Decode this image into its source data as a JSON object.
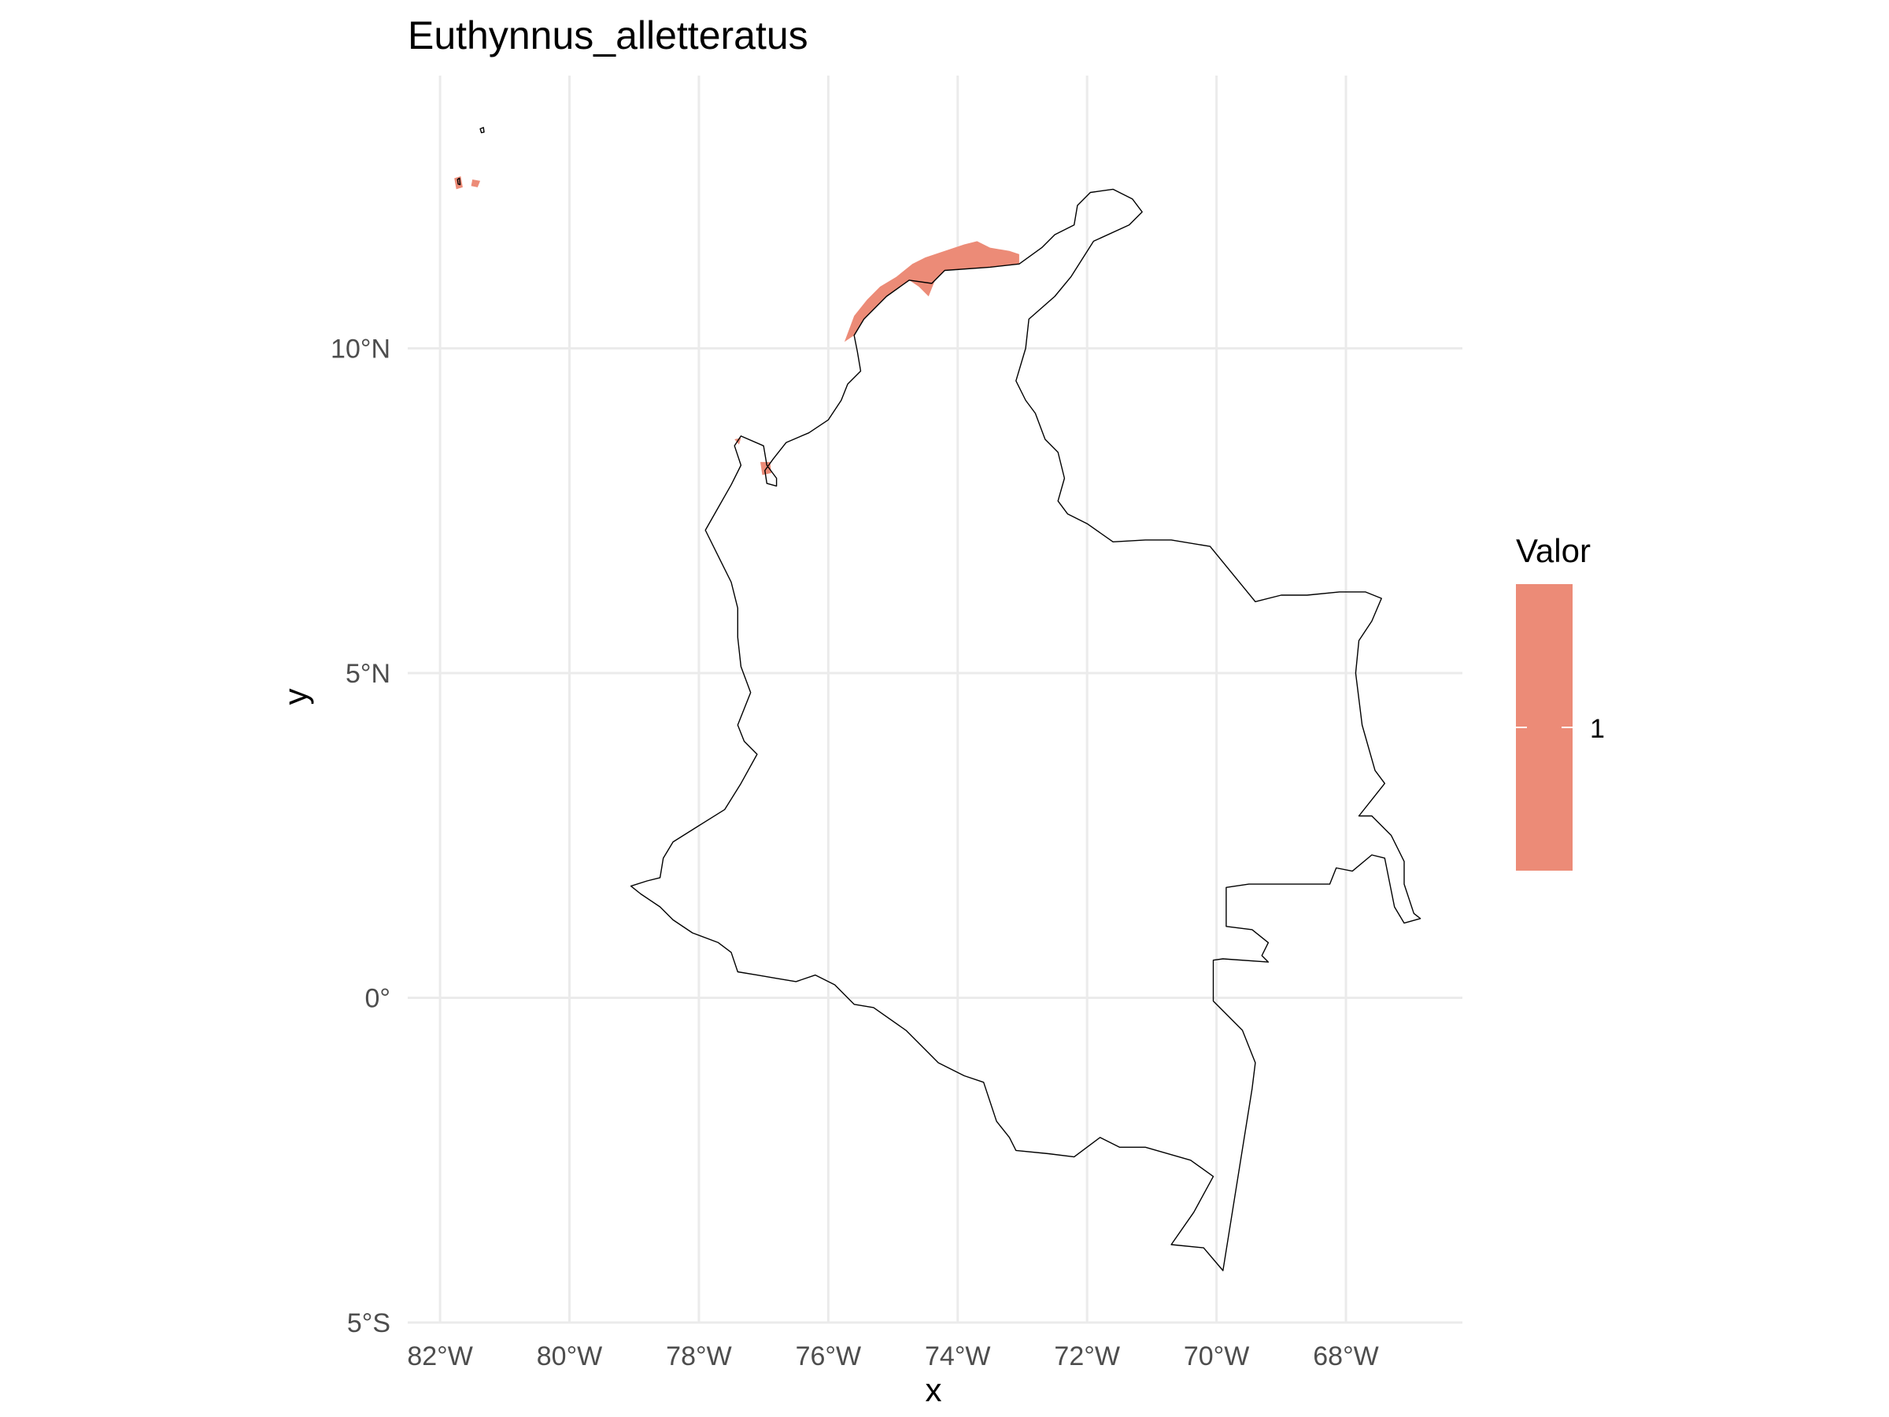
{
  "chart_data": {
    "type": "map",
    "title": "Euthynnus_alletteratus",
    "xlabel": "x",
    "ylabel": "y",
    "x_ticks": [
      {
        "value": -82,
        "label": "82°W"
      },
      {
        "value": -80,
        "label": "80°W"
      },
      {
        "value": -78,
        "label": "78°W"
      },
      {
        "value": -76,
        "label": "76°W"
      },
      {
        "value": -74,
        "label": "74°W"
      },
      {
        "value": -72,
        "label": "72°W"
      },
      {
        "value": -70,
        "label": "70°W"
      },
      {
        "value": -68,
        "label": "68°W"
      }
    ],
    "y_ticks": [
      {
        "value": 10,
        "label": "10°N"
      },
      {
        "value": 5,
        "label": "5°N"
      },
      {
        "value": 0,
        "label": "0°"
      },
      {
        "value": -5,
        "label": "5°S"
      }
    ],
    "xlim": [
      -82.5,
      -66.2
    ],
    "ylim": [
      -5.0,
      14.2
    ],
    "grid": true,
    "legend": {
      "title": "Valor",
      "position": "right",
      "entries": [
        {
          "label": "1",
          "color": "#ec8b77"
        }
      ]
    },
    "colors": {
      "presence_fill": "#ec8b77",
      "border": "#000000",
      "grid": "#ebebeb",
      "tick_text": "#4d4d4d"
    },
    "border": [
      [
        -77.9,
        7.2
      ],
      [
        -77.7,
        7.55
      ],
      [
        -77.5,
        7.9
      ],
      [
        -77.35,
        8.2
      ],
      [
        -77.45,
        8.5
      ],
      [
        -77.35,
        8.65
      ],
      [
        -77.0,
        8.5
      ],
      [
        -76.95,
        8.2
      ],
      [
        -76.8,
        8.0
      ],
      [
        -76.8,
        7.88
      ],
      [
        -76.95,
        7.92
      ],
      [
        -76.98,
        8.12
      ],
      [
        -76.85,
        8.3
      ],
      [
        -76.65,
        8.55
      ],
      [
        -76.3,
        8.7
      ],
      [
        -76.0,
        8.9
      ],
      [
        -75.8,
        9.2
      ],
      [
        -75.7,
        9.45
      ],
      [
        -75.5,
        9.65
      ],
      [
        -75.55,
        9.95
      ],
      [
        -75.6,
        10.2
      ],
      [
        -75.45,
        10.45
      ],
      [
        -75.1,
        10.8
      ],
      [
        -74.75,
        11.05
      ],
      [
        -74.4,
        11.0
      ],
      [
        -74.2,
        11.2
      ],
      [
        -73.5,
        11.25
      ],
      [
        -73.05,
        11.3
      ],
      [
        -72.7,
        11.55
      ],
      [
        -72.5,
        11.75
      ],
      [
        -72.2,
        11.9
      ],
      [
        -72.15,
        12.2
      ],
      [
        -71.95,
        12.4
      ],
      [
        -71.6,
        12.45
      ],
      [
        -71.3,
        12.3
      ],
      [
        -71.15,
        12.1
      ],
      [
        -71.35,
        11.9
      ],
      [
        -71.9,
        11.65
      ],
      [
        -72.25,
        11.1
      ],
      [
        -72.5,
        10.8
      ],
      [
        -72.9,
        10.45
      ],
      [
        -72.95,
        10.0
      ],
      [
        -73.1,
        9.5
      ],
      [
        -72.95,
        9.2
      ],
      [
        -72.8,
        9.0
      ],
      [
        -72.65,
        8.6
      ],
      [
        -72.45,
        8.4
      ],
      [
        -72.35,
        8.0
      ],
      [
        -72.45,
        7.65
      ],
      [
        -72.3,
        7.45
      ],
      [
        -72.0,
        7.3
      ],
      [
        -71.6,
        7.02
      ],
      [
        -71.1,
        7.05
      ],
      [
        -70.7,
        7.05
      ],
      [
        -70.1,
        6.95
      ],
      [
        -69.4,
        6.1
      ],
      [
        -69.0,
        6.2
      ],
      [
        -68.6,
        6.2
      ],
      [
        -68.1,
        6.25
      ],
      [
        -67.7,
        6.25
      ],
      [
        -67.45,
        6.15
      ],
      [
        -67.6,
        5.8
      ],
      [
        -67.8,
        5.5
      ],
      [
        -67.85,
        5.0
      ],
      [
        -67.8,
        4.6
      ],
      [
        -67.75,
        4.2
      ],
      [
        -67.55,
        3.5
      ],
      [
        -67.4,
        3.3
      ],
      [
        -67.8,
        2.8
      ],
      [
        -67.6,
        2.8
      ],
      [
        -67.3,
        2.5
      ],
      [
        -67.1,
        2.1
      ],
      [
        -67.1,
        1.75
      ],
      [
        -66.95,
        1.3
      ],
      [
        -66.85,
        1.22
      ],
      [
        -67.1,
        1.15
      ],
      [
        -67.25,
        1.4
      ],
      [
        -67.4,
        2.15
      ],
      [
        -67.6,
        2.2
      ],
      [
        -67.9,
        1.95
      ],
      [
        -68.15,
        2.0
      ],
      [
        -68.25,
        1.75
      ],
      [
        -69.5,
        1.75
      ],
      [
        -69.85,
        1.7
      ],
      [
        -69.85,
        1.1
      ],
      [
        -69.45,
        1.05
      ],
      [
        -69.2,
        0.85
      ],
      [
        -69.3,
        0.65
      ],
      [
        -69.2,
        0.55
      ],
      [
        -69.9,
        0.6
      ],
      [
        -70.05,
        0.58
      ],
      [
        -70.05,
        -0.05
      ],
      [
        -69.6,
        -0.5
      ],
      [
        -69.4,
        -1.0
      ],
      [
        -69.45,
        -1.4
      ],
      [
        -69.9,
        -4.2
      ],
      [
        -70.2,
        -3.85
      ],
      [
        -70.7,
        -3.8
      ],
      [
        -70.35,
        -3.3
      ],
      [
        -70.05,
        -2.75
      ],
      [
        -70.4,
        -2.5
      ],
      [
        -71.1,
        -2.3
      ],
      [
        -71.5,
        -2.3
      ],
      [
        -71.8,
        -2.15
      ],
      [
        -72.2,
        -2.45
      ],
      [
        -72.6,
        -2.4
      ],
      [
        -73.1,
        -2.35
      ],
      [
        -73.2,
        -2.15
      ],
      [
        -73.4,
        -1.9
      ],
      [
        -73.6,
        -1.3
      ],
      [
        -73.9,
        -1.2
      ],
      [
        -74.3,
        -1.0
      ],
      [
        -74.5,
        -0.8
      ],
      [
        -74.8,
        -0.5
      ],
      [
        -75.3,
        -0.15
      ],
      [
        -75.6,
        -0.1
      ],
      [
        -75.9,
        0.2
      ],
      [
        -76.2,
        0.35
      ],
      [
        -76.5,
        0.25
      ],
      [
        -76.8,
        0.3
      ],
      [
        -77.1,
        0.35
      ],
      [
        -77.4,
        0.4
      ],
      [
        -77.5,
        0.7
      ],
      [
        -77.7,
        0.85
      ],
      [
        -78.1,
        1.0
      ],
      [
        -78.4,
        1.2
      ],
      [
        -78.6,
        1.4
      ],
      [
        -78.9,
        1.6
      ],
      [
        -79.05,
        1.72
      ],
      [
        -78.8,
        1.8
      ],
      [
        -78.6,
        1.85
      ],
      [
        -78.55,
        2.15
      ],
      [
        -78.4,
        2.4
      ],
      [
        -78.0,
        2.65
      ],
      [
        -77.6,
        2.9
      ],
      [
        -77.35,
        3.3
      ],
      [
        -77.1,
        3.75
      ],
      [
        -77.3,
        3.95
      ],
      [
        -77.4,
        4.2
      ],
      [
        -77.2,
        4.7
      ],
      [
        -77.35,
        5.1
      ],
      [
        -77.4,
        5.55
      ],
      [
        -77.4,
        6.0
      ],
      [
        -77.5,
        6.4
      ],
      [
        -77.65,
        6.7
      ],
      [
        -77.9,
        7.2
      ]
    ],
    "presence_polygons": [
      [
        [
          -75.75,
          10.1
        ],
        [
          -75.6,
          10.5
        ],
        [
          -75.4,
          10.75
        ],
        [
          -75.2,
          10.95
        ],
        [
          -74.95,
          11.1
        ],
        [
          -74.7,
          11.3
        ],
        [
          -74.5,
          11.4
        ],
        [
          -74.2,
          11.5
        ],
        [
          -73.9,
          11.6
        ],
        [
          -73.7,
          11.65
        ],
        [
          -73.5,
          11.55
        ],
        [
          -73.2,
          11.5
        ],
        [
          -73.05,
          11.45
        ],
        [
          -73.05,
          11.3
        ],
        [
          -73.5,
          11.25
        ],
        [
          -74.2,
          11.2
        ],
        [
          -74.35,
          11.05
        ],
        [
          -74.45,
          10.8
        ],
        [
          -74.6,
          10.95
        ],
        [
          -74.75,
          11.05
        ],
        [
          -75.1,
          10.8
        ],
        [
          -75.45,
          10.45
        ],
        [
          -75.6,
          10.2
        ]
      ],
      [
        [
          -81.78,
          12.62
        ],
        [
          -81.68,
          12.65
        ],
        [
          -81.65,
          12.48
        ],
        [
          -81.75,
          12.45
        ]
      ],
      [
        [
          -81.5,
          12.6
        ],
        [
          -81.38,
          12.58
        ],
        [
          -81.42,
          12.48
        ],
        [
          -81.52,
          12.5
        ]
      ],
      [
        [
          -77.05,
          8.25
        ],
        [
          -76.9,
          8.25
        ],
        [
          -76.88,
          8.08
        ],
        [
          -77.02,
          8.05
        ]
      ],
      [
        [
          -77.45,
          8.6
        ],
        [
          -77.35,
          8.62
        ],
        [
          -77.38,
          8.52
        ]
      ]
    ],
    "island_outlines": [
      [
        [
          -81.38,
          13.38
        ],
        [
          -81.33,
          13.4
        ],
        [
          -81.32,
          13.33
        ],
        [
          -81.36,
          13.32
        ]
      ],
      [
        [
          -81.73,
          12.6
        ],
        [
          -81.7,
          12.62
        ],
        [
          -81.69,
          12.52
        ],
        [
          -81.72,
          12.53
        ]
      ]
    ]
  }
}
